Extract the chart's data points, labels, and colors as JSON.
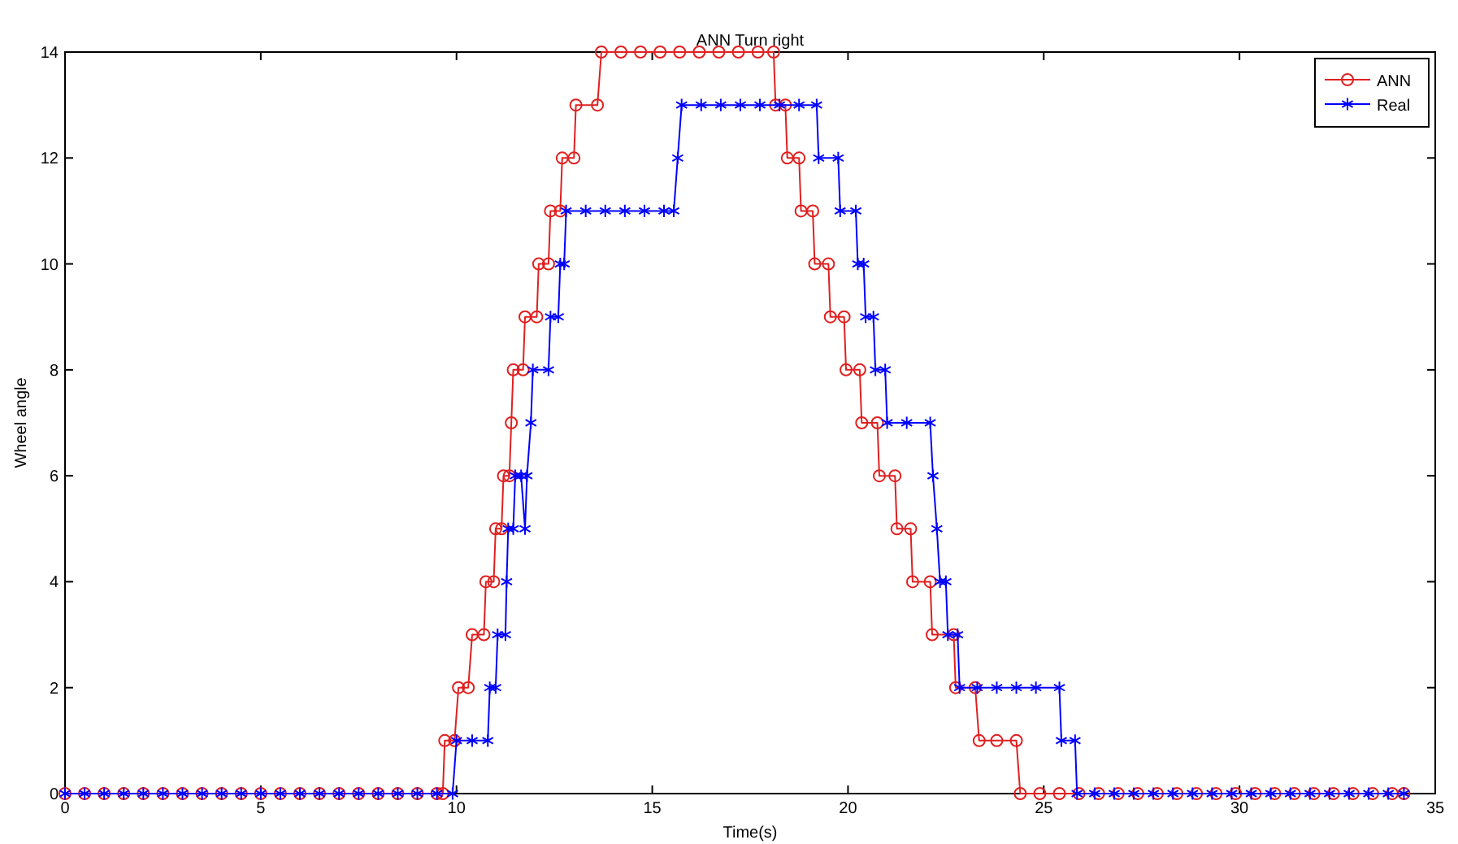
{
  "chart_data": {
    "type": "line",
    "title": "ANN Turn right",
    "xlabel": "Time(s)",
    "ylabel": "Wheel angle",
    "xlim": [
      0,
      35
    ],
    "xticks": [
      0,
      5,
      10,
      15,
      20,
      25,
      30,
      35
    ],
    "ylim": [
      0,
      14
    ],
    "yticks": [
      0,
      2,
      4,
      6,
      8,
      10,
      12,
      14
    ],
    "grid": false,
    "legend": "top right",
    "line_style": "solid",
    "series": [
      {
        "name": "ANN",
        "color": "#e02020",
        "marker": "circle",
        "x": [
          0,
          0.5,
          1,
          1.5,
          2,
          2.5,
          3,
          3.5,
          4,
          4.5,
          5,
          5.5,
          6,
          6.5,
          7,
          7.5,
          8,
          8.5,
          9,
          9.5,
          9.65,
          9.7,
          9.95,
          10.05,
          10.3,
          10.4,
          10.7,
          10.75,
          10.95,
          11.0,
          11.15,
          11.2,
          11.35,
          11.4,
          11.45,
          11.7,
          11.75,
          12.05,
          12.1,
          12.35,
          12.4,
          12.65,
          12.7,
          13.0,
          13.05,
          13.6,
          13.7,
          14.2,
          14.7,
          15.2,
          15.7,
          16.2,
          16.7,
          17.2,
          17.7,
          18.1,
          18.15,
          18.4,
          18.45,
          18.75,
          18.8,
          19.1,
          19.15,
          19.5,
          19.55,
          19.9,
          19.95,
          20.3,
          20.35,
          20.75,
          20.8,
          21.2,
          21.25,
          21.6,
          21.65,
          22.1,
          22.15,
          22.7,
          22.75,
          23.25,
          23.35,
          23.8,
          24.3,
          24.4,
          24.9,
          25.4,
          25.9,
          26.4,
          26.9,
          27.4,
          27.9,
          28.4,
          28.9,
          29.4,
          29.9,
          30.4,
          30.9,
          31.4,
          31.9,
          32.4,
          32.9,
          33.4,
          33.9,
          34.2
        ],
        "values": [
          0,
          0,
          0,
          0,
          0,
          0,
          0,
          0,
          0,
          0,
          0,
          0,
          0,
          0,
          0,
          0,
          0,
          0,
          0,
          0,
          0,
          1,
          1,
          2,
          2,
          3,
          3,
          4,
          4,
          5,
          5,
          6,
          6,
          7,
          8,
          8,
          9,
          9,
          10,
          10,
          11,
          11,
          12,
          12,
          13,
          13,
          14,
          14,
          14,
          14,
          14,
          14,
          14,
          14,
          14,
          14,
          13,
          13,
          12,
          12,
          11,
          11,
          10,
          10,
          9,
          9,
          8,
          8,
          7,
          7,
          6,
          6,
          5,
          5,
          4,
          4,
          3,
          3,
          2,
          2,
          1,
          1,
          1,
          0,
          0,
          0,
          0,
          0,
          0,
          0,
          0,
          0,
          0,
          0,
          0,
          0,
          0,
          0,
          0,
          0,
          0,
          0,
          0,
          0
        ]
      },
      {
        "name": "Real",
        "color": "#0000ff",
        "marker": "cross",
        "x": [
          0,
          0.5,
          1,
          1.5,
          2,
          2.5,
          3,
          3.5,
          4,
          4.5,
          5,
          5.5,
          6,
          6.5,
          7,
          7.5,
          8,
          8.5,
          9,
          9.5,
          9.9,
          10.0,
          10.4,
          10.8,
          10.85,
          11.0,
          11.05,
          11.25,
          11.28,
          11.32,
          11.45,
          11.5,
          11.65,
          11.75,
          11.8,
          11.9,
          11.95,
          12.35,
          12.4,
          12.6,
          12.65,
          12.75,
          12.8,
          13.3,
          13.8,
          14.3,
          14.8,
          15.3,
          15.55,
          15.65,
          15.75,
          16.25,
          16.75,
          17.25,
          17.75,
          18.25,
          18.75,
          19.2,
          19.25,
          19.75,
          19.8,
          20.2,
          20.25,
          20.4,
          20.45,
          20.65,
          20.7,
          20.95,
          21.0,
          21.5,
          22.1,
          22.17,
          22.27,
          22.35,
          22.5,
          22.55,
          22.8,
          22.85,
          23.3,
          23.8,
          24.3,
          24.8,
          25.4,
          25.45,
          25.8,
          25.85,
          26.3,
          26.8,
          27.3,
          27.8,
          28.3,
          28.8,
          29.3,
          29.8,
          30.3,
          30.8,
          31.3,
          31.8,
          32.3,
          32.8,
          33.3,
          33.8,
          34.2
        ],
        "values": [
          0,
          0,
          0,
          0,
          0,
          0,
          0,
          0,
          0,
          0,
          0,
          0,
          0,
          0,
          0,
          0,
          0,
          0,
          0,
          0,
          0,
          1,
          1,
          1,
          2,
          2,
          3,
          3,
          4,
          5,
          5,
          6,
          6,
          5,
          6,
          7,
          8,
          8,
          9,
          9,
          10,
          10,
          11,
          11,
          11,
          11,
          11,
          11,
          11,
          12,
          13,
          13,
          13,
          13,
          13,
          13,
          13,
          13,
          12,
          12,
          11,
          11,
          10,
          10,
          9,
          9,
          8,
          8,
          7,
          7,
          7,
          6,
          5,
          4,
          4,
          3,
          3,
          2,
          2,
          2,
          2,
          2,
          2,
          1,
          1,
          0,
          0,
          0,
          0,
          0,
          0,
          0,
          0,
          0,
          0,
          0,
          0,
          0,
          0,
          0,
          0,
          0,
          0
        ]
      }
    ]
  }
}
